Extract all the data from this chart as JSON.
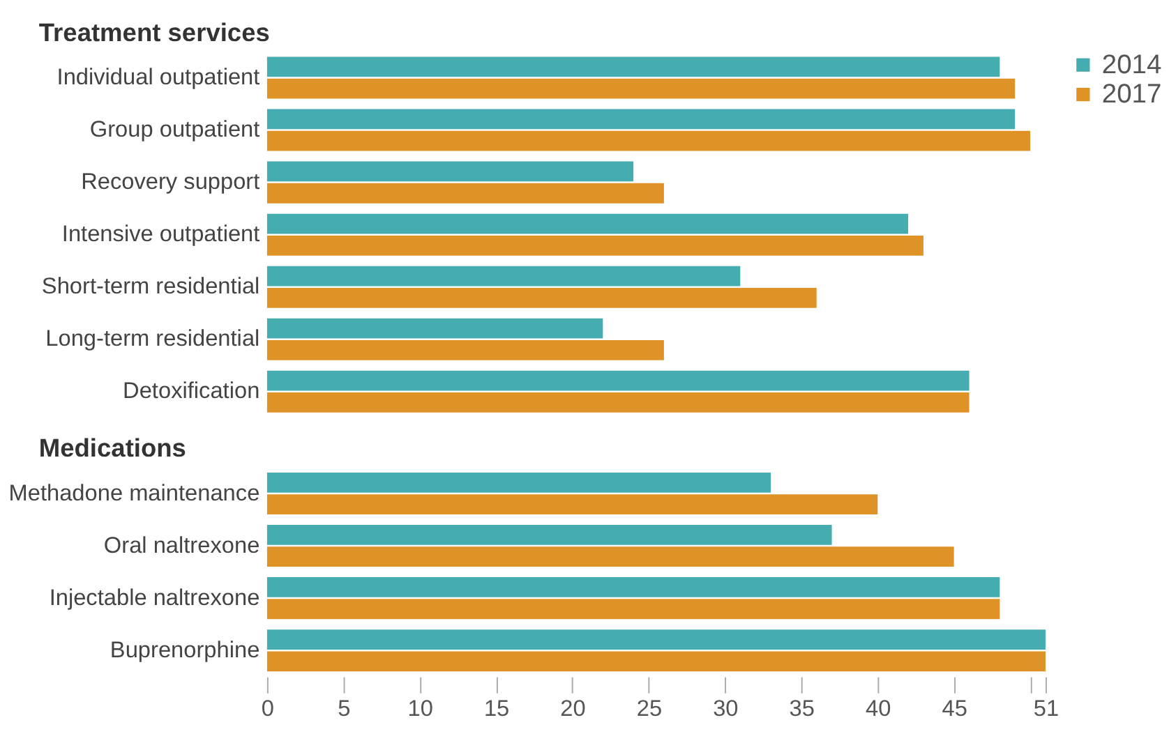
{
  "chart_data": [
    {
      "type": "bar",
      "orientation": "horizontal",
      "title": "Treatment services",
      "categories": [
        "Individual outpatient",
        "Group outpatient",
        "Recovery support",
        "Intensive outpatient",
        "Short-term residential",
        "Long-term residential",
        "Detoxification"
      ],
      "series": [
        {
          "name": "2014",
          "color": "#45acb0",
          "values": [
            48,
            49,
            24,
            42,
            31,
            22,
            46
          ]
        },
        {
          "name": "2017",
          "color": "#df9326",
          "values": [
            49,
            50,
            26,
            43,
            36,
            26,
            46
          ]
        }
      ],
      "xlim": [
        0,
        51
      ],
      "tick_labels": "y",
      "grid": false,
      "legend": "top right"
    },
    {
      "type": "bar",
      "orientation": "horizontal",
      "title": "Medications",
      "categories": [
        "Methadone maintenance",
        "Oral naltrexone",
        "Injectable naltrexone",
        "Buprenorphine"
      ],
      "series": [
        {
          "color": "#45acb0",
          "values": [
            33,
            37,
            48,
            51
          ]
        },
        {
          "color": "#df9326",
          "values": [
            40,
            45,
            48,
            51
          ]
        }
      ],
      "xlim": [
        0,
        51
      ],
      "xticks": [
        0,
        5,
        10,
        15,
        20,
        25,
        30,
        35,
        40,
        45,
        {
          "value": 50,
          "label": null
        },
        51
      ],
      "grid": false,
      "legend": false
    }
  ]
}
